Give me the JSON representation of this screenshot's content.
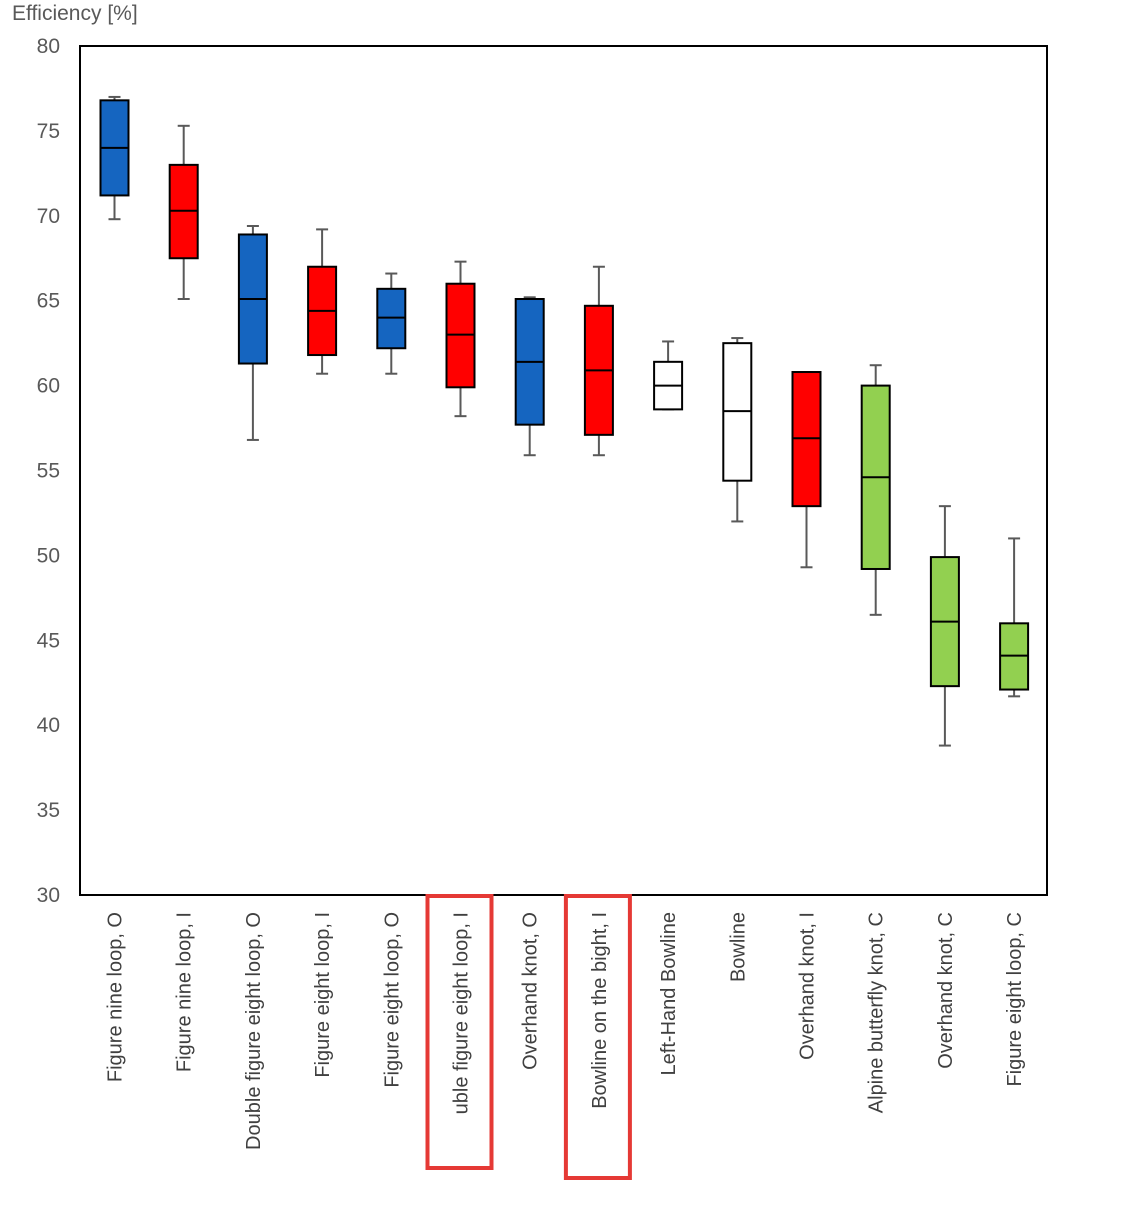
{
  "chart_data": {
    "type": "boxplot",
    "ylabel": "Efficiency [%]",
    "ylim": [
      30,
      80
    ],
    "yticks": [
      30,
      35,
      40,
      45,
      50,
      55,
      60,
      65,
      70,
      75,
      80
    ],
    "grid": false,
    "colors": {
      "blue": "#1565C0",
      "red": "#FF0000",
      "white": "#FFFFFF",
      "green": "#92D050",
      "outline": "#000000",
      "whisker": "#595959",
      "highlight": "#E53935"
    },
    "categories": [
      "Figure nine loop, O",
      "Figure nine loop, I",
      "Double figure eight loop, O",
      "Figure eight loop, I",
      "Figure eight loop, O",
      "uble figure eight loop, I",
      "Overhand knot, O",
      "Bowline on the bight, I",
      "Left-Hand Bowline",
      "Bowline",
      "Overhand knot, I",
      "Alpine butterfly knot, C",
      "Overhand knot, C",
      "Figure eight loop, C"
    ],
    "boxes": [
      {
        "min": 69.8,
        "q1": 71.2,
        "median": 74.0,
        "q3": 76.8,
        "max": 77.0,
        "color": "blue"
      },
      {
        "min": 65.1,
        "q1": 67.5,
        "median": 70.3,
        "q3": 73.0,
        "max": 75.3,
        "color": "red"
      },
      {
        "min": 56.8,
        "q1": 61.3,
        "median": 65.1,
        "q3": 68.9,
        "max": 69.4,
        "color": "blue"
      },
      {
        "min": 60.7,
        "q1": 61.8,
        "median": 64.4,
        "q3": 67.0,
        "max": 69.2,
        "color": "red"
      },
      {
        "min": 60.7,
        "q1": 62.2,
        "median": 64.0,
        "q3": 65.7,
        "max": 66.6,
        "color": "blue"
      },
      {
        "min": 58.2,
        "q1": 59.9,
        "median": 63.0,
        "q3": 66.0,
        "max": 67.3,
        "color": "red"
      },
      {
        "min": 55.9,
        "q1": 57.7,
        "median": 61.4,
        "q3": 65.1,
        "max": 65.2,
        "color": "blue"
      },
      {
        "min": 55.9,
        "q1": 57.1,
        "median": 60.9,
        "q3": 64.7,
        "max": 67.0,
        "color": "red"
      },
      {
        "min": 58.6,
        "q1": 58.6,
        "median": 60.0,
        "q3": 61.4,
        "max": 62.6,
        "color": "white"
      },
      {
        "min": 52.0,
        "q1": 54.4,
        "median": 58.5,
        "q3": 62.5,
        "max": 62.8,
        "color": "white"
      },
      {
        "min": 49.3,
        "q1": 52.9,
        "median": 56.9,
        "q3": 60.8,
        "max": 60.8,
        "color": "red"
      },
      {
        "min": 46.5,
        "q1": 49.2,
        "median": 54.6,
        "q3": 60.0,
        "max": 61.2,
        "color": "green"
      },
      {
        "min": 38.8,
        "q1": 42.3,
        "median": 46.1,
        "q3": 49.9,
        "max": 52.9,
        "color": "green"
      },
      {
        "min": 41.7,
        "q1": 42.1,
        "median": 44.1,
        "q3": 46.0,
        "max": 51.0,
        "color": "green"
      }
    ],
    "highlighted_categories": [
      5,
      7
    ]
  }
}
